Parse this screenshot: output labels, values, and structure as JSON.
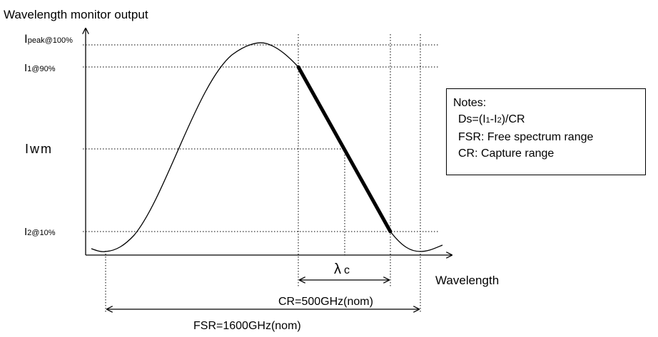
{
  "ylabel": "Wavelength monitor output",
  "xlabel": "Wavelength",
  "levels": {
    "peak": {
      "main": "I",
      "sub": "peak@100%"
    },
    "i1": {
      "main": "I",
      "sub": "1@90%"
    },
    "iwm": {
      "main": "Iwm"
    },
    "i2": {
      "main": "I",
      "sub": "2@10%"
    }
  },
  "lambda_c": {
    "symbol": "λ",
    "sub": "c"
  },
  "cr_label": "CR=500GHz(nom)",
  "fsr_label": "FSR=1600GHz(nom)",
  "notes": {
    "title": "Notes:",
    "ds": {
      "prefix": "Ds=(I",
      "s1": "1",
      "mid": "-I",
      "s2": "2",
      "suffix": ")/CR"
    },
    "fsr": "FSR: Free spectrum range",
    "cr": "CR: Capture range"
  }
}
